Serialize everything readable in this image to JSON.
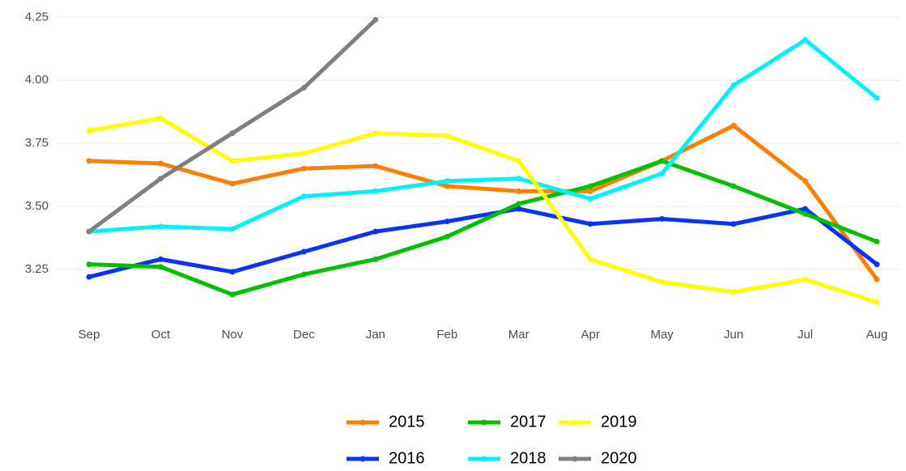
{
  "chart_data": {
    "type": "line",
    "categories": [
      "Sep",
      "Oct",
      "Nov",
      "Dec",
      "Jan",
      "Feb",
      "Mar",
      "Apr",
      "May",
      "Jun",
      "Jul",
      "Aug"
    ],
    "ylim": [
      3.06,
      4.28
    ],
    "yticks": [
      3.25,
      {
        "value": 3.5,
        "label": "3.50"
      },
      3.75,
      {
        "value": 4,
        "label": "4.00"
      },
      4.25
    ],
    "grid": true,
    "legend": "bottom",
    "series": [
      {
        "name": "2015",
        "color": "#ff7f00",
        "values": [
          3.68,
          3.67,
          3.59,
          3.65,
          3.66,
          3.58,
          3.56,
          3.56,
          3.68,
          3.82,
          3.6,
          3.21
        ]
      },
      {
        "name": "2016",
        "color": "#0a32ff",
        "values": [
          3.22,
          3.29,
          3.24,
          3.32,
          3.4,
          3.44,
          3.49,
          3.43,
          3.45,
          3.43,
          3.49,
          3.27
        ]
      },
      {
        "name": "2017",
        "color": "#00c000",
        "values": [
          3.27,
          3.26,
          3.15,
          3.23,
          3.29,
          3.38,
          3.51,
          3.58,
          3.68,
          3.58,
          3.47,
          3.36
        ]
      },
      {
        "name": "2018",
        "color": "#00f0ff",
        "values": [
          3.4,
          3.42,
          3.41,
          3.54,
          3.56,
          3.6,
          3.61,
          3.53,
          3.63,
          3.98,
          4.16,
          3.93
        ]
      },
      {
        "name": "2019",
        "color": "#ffff00",
        "values": [
          3.8,
          3.85,
          3.68,
          3.71,
          3.79,
          3.78,
          3.68,
          3.29,
          3.2,
          3.16,
          3.21,
          3.12
        ]
      },
      {
        "name": "2020",
        "color": "#808080",
        "values": [
          3.4,
          3.61,
          3.79,
          3.97,
          4.24,
          null,
          null,
          null,
          null,
          null,
          null,
          null
        ]
      }
    ]
  }
}
